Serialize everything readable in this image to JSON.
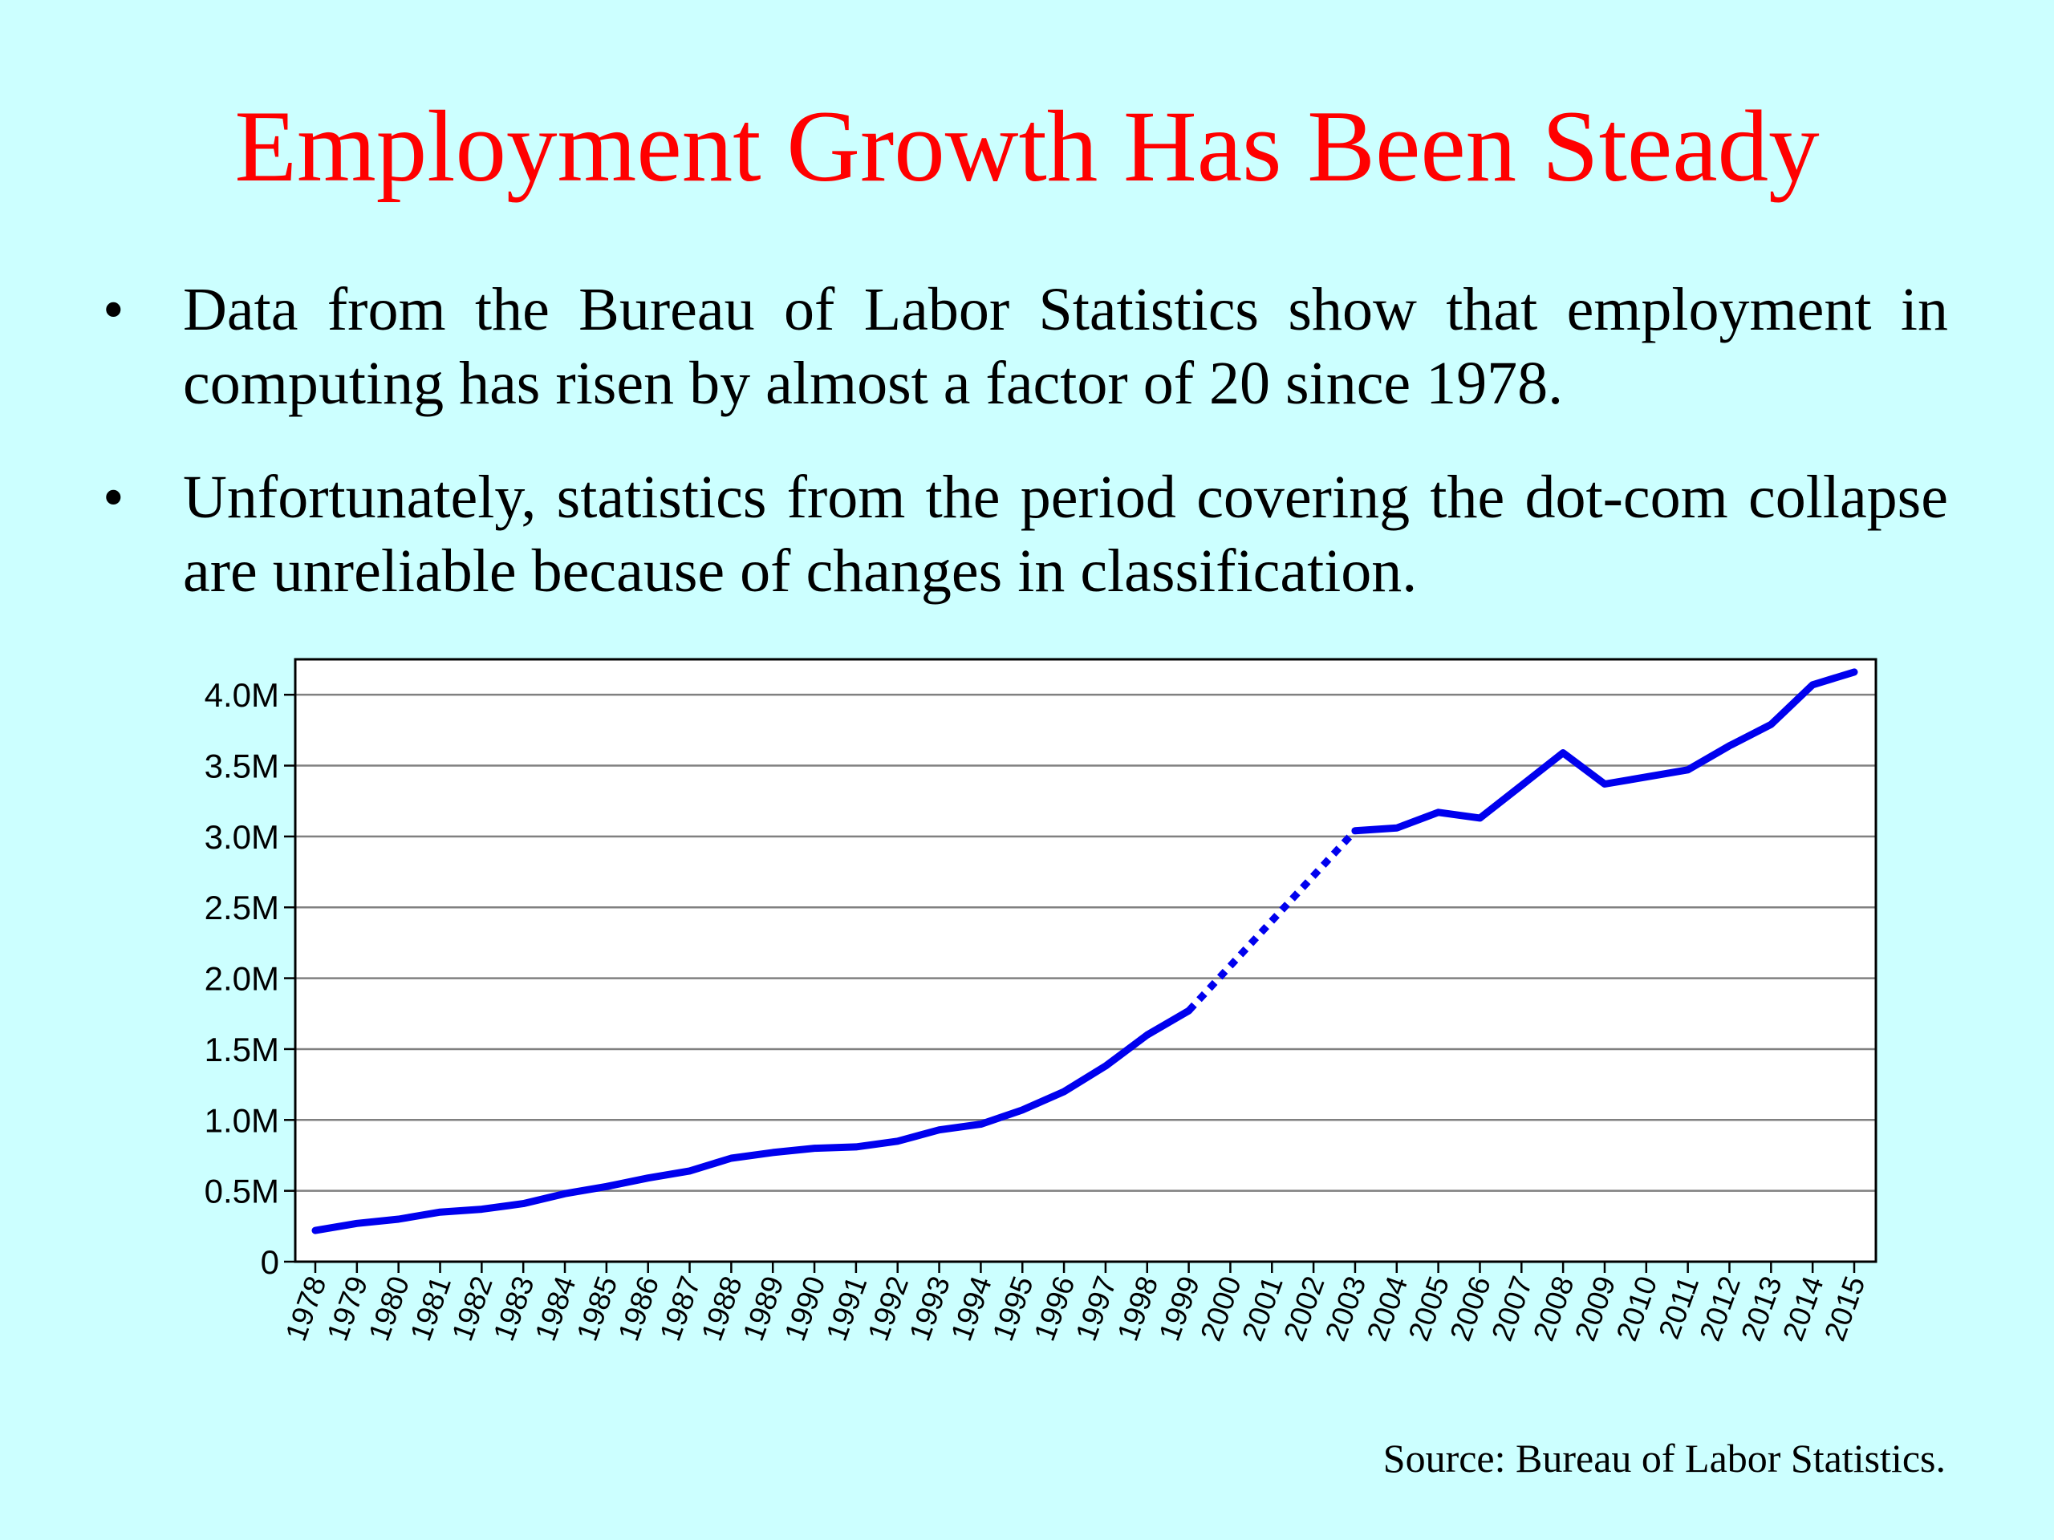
{
  "slide": {
    "title": "Employment Growth Has Been Steady",
    "bullets": [
      "Data from the Bureau of Labor Statistics show that employment in computing has risen by almost a factor of 20 since 1978.",
      "Unfortunately, statistics from the period covering the dot-com collapse are unreliable because of changes in classification."
    ],
    "bullet_glyph": "•",
    "source": "Source: Bureau of Labor Statistics."
  },
  "colors": {
    "background": "#ccffff",
    "title": "#ff0000",
    "line": "#0000ee",
    "gridline": "#808080"
  },
  "chart_data": {
    "type": "line",
    "title": "",
    "xlabel": "",
    "ylabel": "",
    "x": [
      1978,
      1979,
      1980,
      1981,
      1982,
      1983,
      1984,
      1985,
      1986,
      1987,
      1988,
      1989,
      1990,
      1991,
      1992,
      1993,
      1994,
      1995,
      1996,
      1997,
      1998,
      1999,
      2000,
      2001,
      2002,
      2003,
      2004,
      2005,
      2006,
      2007,
      2008,
      2009,
      2010,
      2011,
      2012,
      2013,
      2014,
      2015
    ],
    "y_ticks": [
      0,
      0.5,
      1.0,
      1.5,
      2.0,
      2.5,
      3.0,
      3.5,
      4.0
    ],
    "y_tick_labels": [
      "0",
      "0.5M",
      "1.0M",
      "1.5M",
      "2.0M",
      "2.5M",
      "3.0M",
      "3.5M",
      "4.0M"
    ],
    "ylim": [
      0,
      4.25
    ],
    "grid": true,
    "legend": "none",
    "series": [
      {
        "values": [
          0.22,
          0.27,
          0.3,
          0.35,
          0.37,
          0.41,
          0.48,
          0.53,
          0.59,
          0.64,
          0.73,
          0.77,
          0.8,
          0.81,
          0.85,
          0.93,
          0.97,
          1.07,
          1.2,
          1.38,
          1.6,
          1.77,
          null,
          null,
          null,
          3.04,
          3.06,
          3.17,
          3.13,
          3.36,
          3.59,
          3.37,
          3.42,
          3.47,
          3.64,
          3.79,
          4.07,
          4.16
        ],
        "style": "solid"
      },
      {
        "x": [
          1999,
          2003
        ],
        "values": [
          1.77,
          3.04
        ],
        "style": "dotted"
      }
    ]
  }
}
